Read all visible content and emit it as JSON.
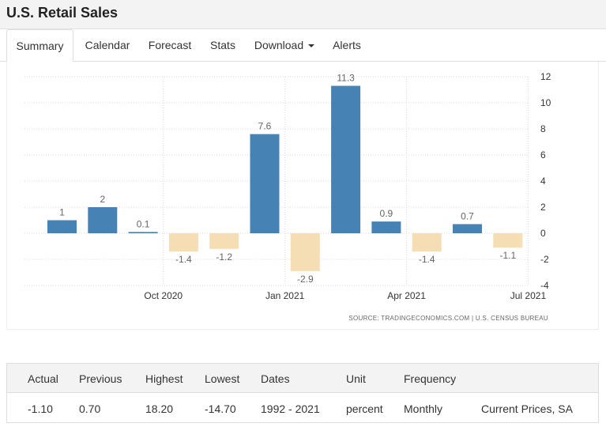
{
  "page": {
    "title": "U.S. Retail Sales"
  },
  "tabs": [
    {
      "label": "Summary",
      "active": true
    },
    {
      "label": "Calendar"
    },
    {
      "label": "Forecast"
    },
    {
      "label": "Stats"
    },
    {
      "label": "Download",
      "dropdown": true
    },
    {
      "label": "Alerts"
    }
  ],
  "chart_data": {
    "type": "bar",
    "title": "",
    "xlabel": "",
    "ylabel": "",
    "ylim": [
      -4,
      12
    ],
    "yticks": [
      12,
      10,
      8,
      6,
      4,
      2,
      0,
      -2,
      -4
    ],
    "x_tick_labels": [
      {
        "label": "Oct 2020",
        "after_index": 2
      },
      {
        "label": "Jan 2021",
        "after_index": 5
      },
      {
        "label": "Apr 2021",
        "after_index": 8
      },
      {
        "label": "Jul 2021",
        "after_index": 11
      }
    ],
    "values": [
      1,
      2,
      0.1,
      -1.4,
      -1.2,
      7.6,
      -2.9,
      11.3,
      0.9,
      -1.4,
      0.7,
      -1.1
    ],
    "labels": [
      "1",
      "2",
      "0.1",
      "-1.4",
      "-1.2",
      "7.6",
      "-2.9",
      "11.3",
      "0.9",
      "-1.4",
      "0.7",
      "-1.1"
    ],
    "colors": {
      "positive": "#4682b4",
      "negative": "#f5deb3",
      "grid": "#d9d9d9",
      "label": "#666666"
    },
    "grid": true,
    "source": "SOURCE: TRADINGECONOMICS.COM | U.S. CENSUS BUREAU"
  },
  "stats": {
    "headers": [
      "Actual",
      "Previous",
      "Highest",
      "Lowest",
      "Dates",
      "Unit",
      "Frequency",
      ""
    ],
    "values": [
      "-1.10",
      "0.70",
      "18.20",
      "-14.70",
      "1992 - 2021",
      "percent",
      "Monthly",
      "Current Prices, SA"
    ]
  }
}
